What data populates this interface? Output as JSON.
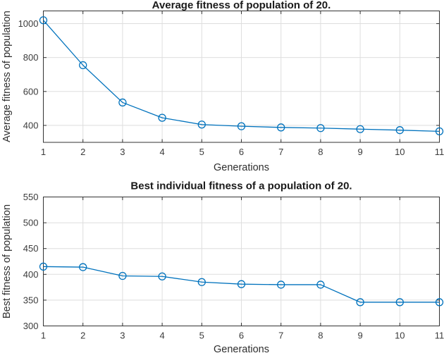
{
  "figure": {
    "background": "#ffffff",
    "kind": "matlab-figure"
  },
  "palette": {
    "line": "#0072BD",
    "grid": "#dedede",
    "axis": "#333333",
    "tick_label": "#3b3b3b",
    "title": "#1a1a1a"
  },
  "chart_data": [
    {
      "type": "line",
      "title": "Average fitness of population of 20.",
      "xlabel": "Generations",
      "ylabel": "Average fitness of population",
      "x": [
        1,
        2,
        3,
        4,
        5,
        6,
        7,
        8,
        9,
        10,
        11
      ],
      "series": [
        {
          "name": "average-fitness",
          "values": [
            1020,
            755,
            535,
            445,
            405,
            395,
            388,
            384,
            378,
            372,
            365
          ]
        }
      ],
      "xlim": [
        1,
        11
      ],
      "ylim": [
        300,
        1075
      ],
      "xticks": [
        1,
        2,
        3,
        4,
        5,
        6,
        7,
        8,
        9,
        10,
        11
      ],
      "yticks": [
        400,
        600,
        800,
        1000
      ],
      "grid": true,
      "legend": null,
      "marker": "open-circle"
    },
    {
      "type": "line",
      "title": "Best individual fitness of a population of 20.",
      "xlabel": "Generations",
      "ylabel": "Best fitness of population",
      "x": [
        1,
        2,
        3,
        4,
        5,
        6,
        7,
        8,
        9,
        10,
        11
      ],
      "series": [
        {
          "name": "best-fitness",
          "values": [
            415,
            414,
            397,
            396,
            385,
            381,
            380,
            380,
            346,
            346,
            346
          ]
        }
      ],
      "xlim": [
        1,
        11
      ],
      "ylim": [
        300,
        550
      ],
      "xticks": [
        1,
        2,
        3,
        4,
        5,
        6,
        7,
        8,
        9,
        10,
        11
      ],
      "yticks": [
        300,
        350,
        400,
        450,
        500,
        550
      ],
      "grid": true,
      "legend": null,
      "marker": "open-circle"
    }
  ]
}
